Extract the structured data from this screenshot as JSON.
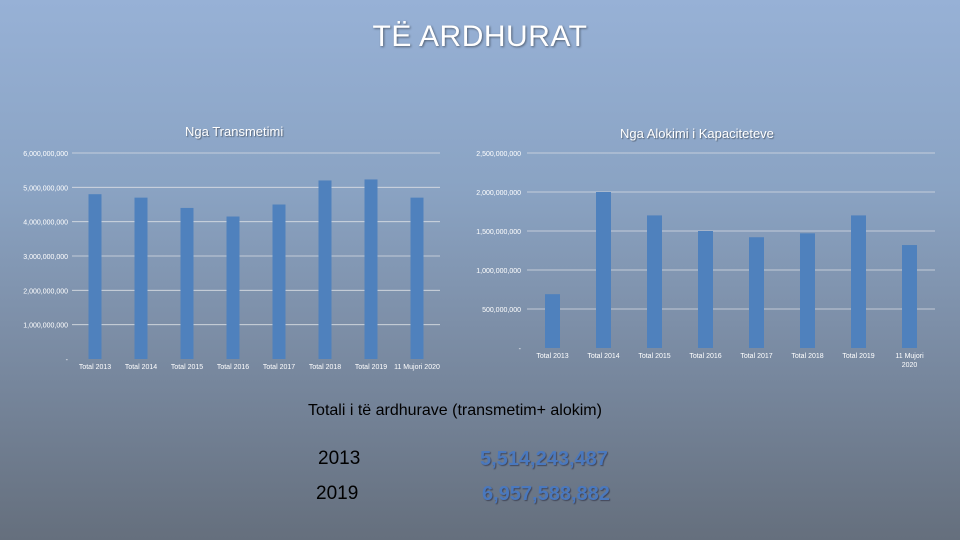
{
  "page": {
    "title": "TË ARDHURAT"
  },
  "colors": {
    "bar": "#4f81bd",
    "grid": "#d9dde3",
    "tick": "#ffffff"
  },
  "chart_data": [
    {
      "type": "bar",
      "title": "Nga Transmetimi",
      "categories": [
        "Total 2013",
        "Total 2014",
        "Total 2015",
        "Total 2016",
        "Total 2017",
        "Total 2018",
        "Total 2019",
        "11 Mujori 2020"
      ],
      "values": [
        4800000000,
        4700000000,
        4400000000,
        4150000000,
        4500000000,
        5200000000,
        5230000000,
        4700000000
      ],
      "ylim": [
        0,
        6000000000
      ],
      "yticks": [
        0,
        1000000000,
        2000000000,
        3000000000,
        4000000000,
        5000000000,
        6000000000
      ],
      "ytick_labels": [
        "-",
        "1,000,000,000",
        "2,000,000,000",
        "3,000,000,000",
        "4,000,000,000",
        "5,000,000,000",
        "6,000,000,000"
      ],
      "grid": true
    },
    {
      "type": "bar",
      "title": "Nga Alokimi i Kapaciteteve",
      "categories": [
        "Total 2013",
        "Total 2014",
        "Total 2015",
        "Total 2016",
        "Total 2017",
        "Total 2018",
        "Total 2019",
        "11 Mujori 2020"
      ],
      "values": [
        690000000,
        2000000000,
        1700000000,
        1500000000,
        1420000000,
        1470000000,
        1700000000,
        1320000000
      ],
      "ylim": [
        0,
        2500000000
      ],
      "yticks": [
        0,
        500000000,
        1000000000,
        1500000000,
        2000000000,
        2500000000
      ],
      "ytick_labels": [
        "-",
        "500,000,000",
        "1,000,000,000",
        "1,500,000,000",
        "2,000,000,000",
        "2,500,000,000"
      ],
      "grid": true
    }
  ],
  "totals": {
    "heading": "Totali i të ardhurave (transmetim+ alokim)",
    "rows": [
      {
        "year": "2013",
        "value": "5,514,243,487"
      },
      {
        "year": "2019",
        "value": "6,957,588,882"
      }
    ]
  }
}
